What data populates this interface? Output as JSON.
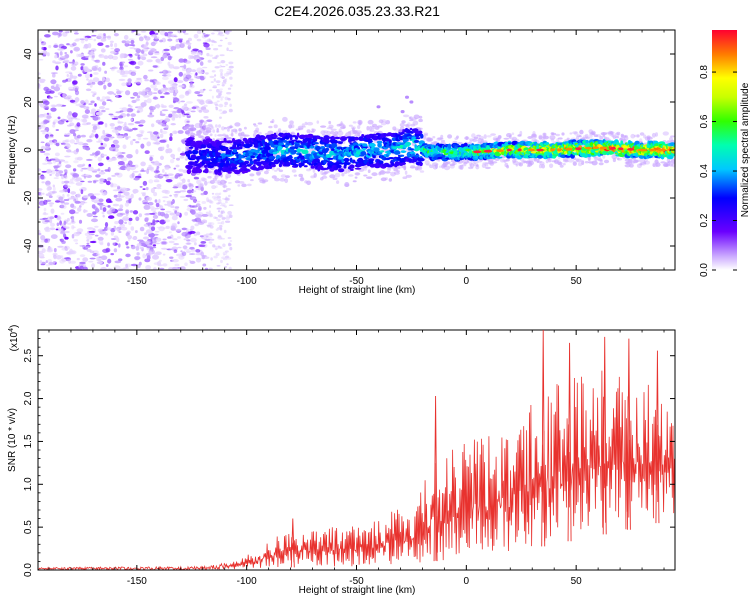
{
  "chart_data": [
    {
      "type": "heatmap",
      "title": "C2E4.2026.035.23.33.R21",
      "xlabel": "Height of straight line (km)",
      "ylabel": "Frequency (Hz)",
      "xlim": [
        -195,
        95
      ],
      "ylim": [
        -50,
        50
      ],
      "xticks": [
        -150,
        -100,
        -50,
        0,
        50
      ],
      "xtick_labels": [
        "-150",
        "-100",
        "-50",
        "0",
        "50"
      ],
      "yticks": [
        -40,
        -20,
        0,
        20,
        40
      ],
      "ytick_labels": [
        "-40",
        "-20",
        "0",
        "20",
        "40"
      ],
      "noise_region_km": [
        -195,
        -117
      ],
      "signal_trace": [
        {
          "km": -127,
          "freq_hz": -2,
          "amp": 0.15
        },
        {
          "km": -115,
          "freq_hz": -3,
          "amp": 0.2
        },
        {
          "km": -100,
          "freq_hz": -2,
          "amp": 0.25
        },
        {
          "km": -85,
          "freq_hz": 0,
          "amp": 0.3
        },
        {
          "km": -70,
          "freq_hz": -1,
          "amp": 0.3
        },
        {
          "km": -55,
          "freq_hz": -2,
          "amp": 0.3
        },
        {
          "km": -45,
          "freq_hz": 0,
          "amp": 0.32
        },
        {
          "km": -35,
          "freq_hz": 0,
          "amp": 0.32
        },
        {
          "km": -25,
          "freq_hz": 2,
          "amp": 0.35
        },
        {
          "km": -15,
          "freq_hz": -1,
          "amp": 0.45
        },
        {
          "km": 0,
          "freq_hz": -1,
          "amp": 0.5
        },
        {
          "km": 20,
          "freq_hz": 0,
          "amp": 0.65
        },
        {
          "km": 40,
          "freq_hz": 0,
          "amp": 0.75
        },
        {
          "km": 60,
          "freq_hz": 1,
          "amp": 0.8
        },
        {
          "km": 80,
          "freq_hz": 0,
          "amp": 0.8
        },
        {
          "km": 95,
          "freq_hz": 0,
          "amp": 0.8
        }
      ],
      "colorbar": {
        "label": "Normalized spectral amplitude",
        "range": [
          0,
          0.97
        ],
        "ticks": [
          0.0,
          0.2,
          0.4,
          0.6,
          0.8
        ],
        "tick_labels": [
          "0.0",
          "0.2",
          "0.4",
          "0.6",
          "0.8"
        ]
      }
    },
    {
      "type": "line",
      "xlabel": "Height of straight line (km)",
      "ylabel": "SNR (10 * v/v)",
      "exponent_label": "(x10",
      "exponent_power": "4",
      "exponent_close": ")",
      "xlim": [
        -195,
        95
      ],
      "ylim": [
        0,
        2.8
      ],
      "xticks": [
        -150,
        -100,
        -50,
        0,
        50
      ],
      "xtick_labels": [
        "-150",
        "-100",
        "-50",
        "0",
        "50"
      ],
      "yticks": [
        0.0,
        0.5,
        1.0,
        1.5,
        2.0,
        2.5
      ],
      "ytick_labels": [
        "0.0",
        "0.5",
        "1.0",
        "1.5",
        "2.0",
        "2.5"
      ],
      "color": "#e8322e",
      "envelope": [
        {
          "km": -195,
          "lo": 0.0,
          "hi": 0.03
        },
        {
          "km": -120,
          "lo": 0.0,
          "hi": 0.04
        },
        {
          "km": -105,
          "lo": 0.01,
          "hi": 0.1
        },
        {
          "km": -95,
          "lo": 0.02,
          "hi": 0.25
        },
        {
          "km": -80,
          "lo": 0.03,
          "hi": 0.5
        },
        {
          "km": -60,
          "lo": 0.04,
          "hi": 0.5
        },
        {
          "km": -40,
          "lo": 0.05,
          "hi": 0.6
        },
        {
          "km": -25,
          "lo": 0.08,
          "hi": 0.8
        },
        {
          "km": -15,
          "lo": 0.1,
          "hi": 1.3
        },
        {
          "km": 0,
          "lo": 0.15,
          "hi": 1.5
        },
        {
          "km": 20,
          "lo": 0.2,
          "hi": 1.7
        },
        {
          "km": 40,
          "lo": 0.3,
          "hi": 2.2
        },
        {
          "km": 60,
          "lo": 0.4,
          "hi": 2.4
        },
        {
          "km": 80,
          "lo": 0.5,
          "hi": 2.2
        },
        {
          "km": 95,
          "lo": 0.6,
          "hi": 2.0
        }
      ],
      "peaks": [
        {
          "km": -79,
          "value": 0.6
        },
        {
          "km": -14,
          "value": 2.03
        },
        {
          "km": 35,
          "value": 2.8
        },
        {
          "km": 47,
          "value": 2.65
        },
        {
          "km": 63,
          "value": 2.72
        },
        {
          "km": 74,
          "value": 2.7
        },
        {
          "km": 87,
          "value": 2.56
        }
      ]
    }
  ]
}
